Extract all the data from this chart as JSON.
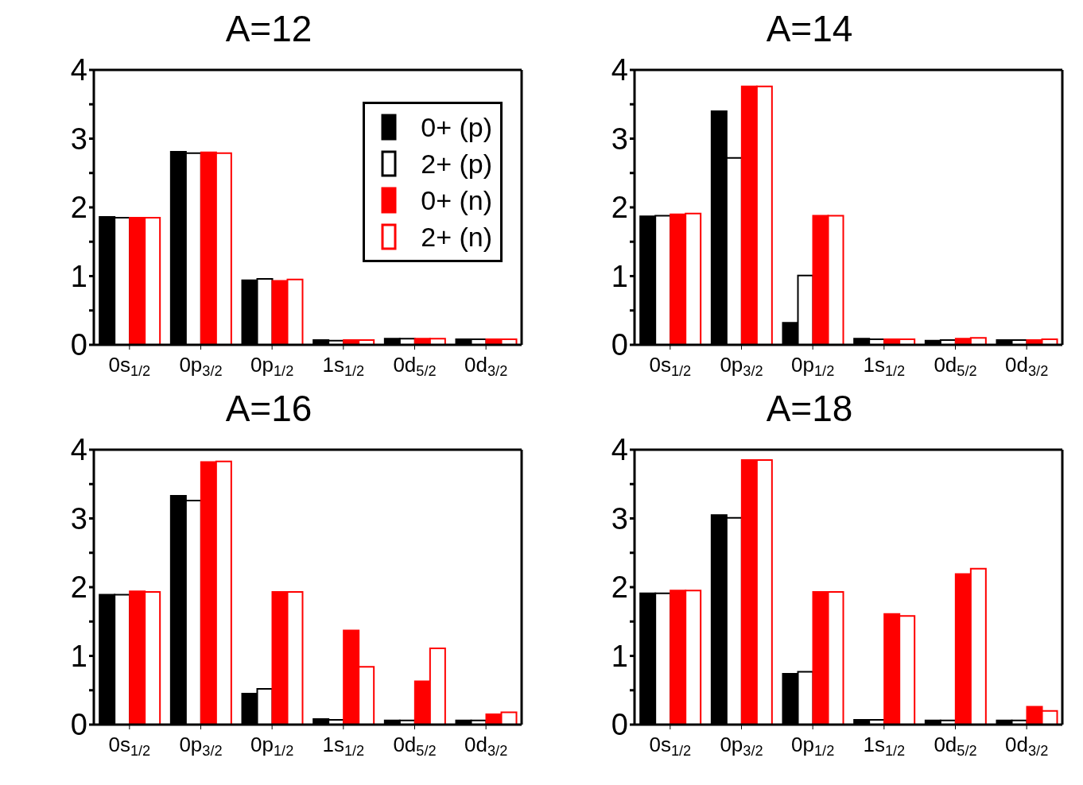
{
  "chart_data": [
    {
      "type": "bar",
      "title": "A=12",
      "categories": [
        "0s$_{1/2}$",
        "0p$_{3/2}$",
        "0p$_{1/2}$",
        "1s$_{1/2}$",
        "0d$_{5/2}$",
        "0d$_{3/2}$"
      ],
      "ylim": [
        0,
        4
      ],
      "yticks": [
        0,
        {
          "value": 0.5,
          "label": null
        },
        1,
        {
          "value": 1.5,
          "label": null
        },
        2,
        {
          "value": 2.5,
          "label": null
        },
        3,
        {
          "value": 3.5,
          "label": null
        },
        4
      ],
      "legend": "top right",
      "series": [
        {
          "name": "0+ (p)",
          "color": "#000000",
          "values": [
            1.86,
            2.81,
            0.94,
            0.07,
            0.09,
            0.08
          ]
        },
        {
          "name": "2+ (p)",
          "color": "#000000",
          "values": [
            1.85,
            2.79,
            0.96,
            0.06,
            0.09,
            0.08
          ]
        },
        {
          "name": "0+ (n)",
          "color": "#ff0000",
          "values": [
            1.85,
            2.8,
            0.93,
            0.07,
            0.09,
            0.08
          ]
        },
        {
          "name": "2+ (n)",
          "color": "#ff0000",
          "values": [
            1.85,
            2.79,
            0.95,
            0.07,
            0.09,
            0.08
          ]
        }
      ]
    },
    {
      "type": "bar",
      "title": "A=14",
      "categories": [
        "0s$_{1/2}$",
        "0p$_{3/2}$",
        "0p$_{1/2}$",
        "1s$_{1/2}$",
        "0d$_{5/2}$",
        "0d$_{3/2}$"
      ],
      "ylim": [
        0,
        4
      ],
      "yticks": [
        0,
        {
          "value": 0.5,
          "label": null
        },
        1,
        {
          "value": 1.5,
          "label": null
        },
        2,
        {
          "value": 2.5,
          "label": null
        },
        3,
        {
          "value": 3.5,
          "label": null
        },
        4
      ],
      "series": [
        {
          "color": "#000000",
          "values": [
            1.87,
            3.4,
            0.32,
            0.09,
            0.06,
            0.07
          ]
        },
        {
          "color": "#000000",
          "values": [
            1.88,
            2.72,
            1.01,
            0.08,
            0.07,
            0.07
          ]
        },
        {
          "color": "#ff0000",
          "values": [
            1.9,
            3.76,
            1.88,
            0.08,
            0.09,
            0.07
          ]
        },
        {
          "color": "#ff0000",
          "values": [
            1.91,
            3.76,
            1.88,
            0.08,
            0.1,
            0.08
          ]
        }
      ]
    },
    {
      "type": "bar",
      "title": "A=16",
      "categories": [
        "0s$_{1/2}$",
        "0p$_{3/2}$",
        "0p$_{1/2}$",
        "1s$_{1/2}$",
        "0d$_{5/2}$",
        "0d$_{3/2}$"
      ],
      "ylim": [
        0,
        4
      ],
      "yticks": [
        0,
        {
          "value": 0.5,
          "label": null
        },
        1,
        {
          "value": 1.5,
          "label": null
        },
        2,
        {
          "value": 2.5,
          "label": null
        },
        3,
        {
          "value": 3.5,
          "label": null
        },
        4
      ],
      "series": [
        {
          "color": "#000000",
          "values": [
            1.89,
            3.33,
            0.45,
            0.08,
            0.06,
            0.06
          ]
        },
        {
          "color": "#000000",
          "values": [
            1.89,
            3.26,
            0.52,
            0.07,
            0.06,
            0.06
          ]
        },
        {
          "color": "#ff0000",
          "values": [
            1.94,
            3.82,
            1.93,
            1.37,
            0.63,
            0.15
          ]
        },
        {
          "color": "#ff0000",
          "values": [
            1.93,
            3.83,
            1.93,
            0.84,
            1.11,
            0.18
          ]
        }
      ]
    },
    {
      "type": "bar",
      "title": "A=18",
      "categories": [
        "0s$_{1/2}$",
        "0p$_{3/2}$",
        "0p$_{1/2}$",
        "1s$_{1/2}$",
        "0d$_{5/2}$",
        "0d$_{3/2}$"
      ],
      "ylim": [
        0,
        4
      ],
      "yticks": [
        0,
        {
          "value": 0.5,
          "label": null
        },
        1,
        {
          "value": 1.5,
          "label": null
        },
        2,
        {
          "value": 2.5,
          "label": null
        },
        3,
        {
          "value": 3.5,
          "label": null
        },
        4
      ],
      "series": [
        {
          "color": "#000000",
          "values": [
            1.91,
            3.05,
            0.74,
            0.07,
            0.06,
            0.06
          ]
        },
        {
          "color": "#000000",
          "values": [
            1.91,
            3.01,
            0.77,
            0.07,
            0.06,
            0.06
          ]
        },
        {
          "color": "#ff0000",
          "values": [
            1.95,
            3.85,
            1.93,
            1.61,
            2.19,
            0.26
          ]
        },
        {
          "color": "#ff0000",
          "values": [
            1.95,
            3.85,
            1.93,
            1.58,
            2.27,
            0.2
          ]
        }
      ]
    }
  ]
}
